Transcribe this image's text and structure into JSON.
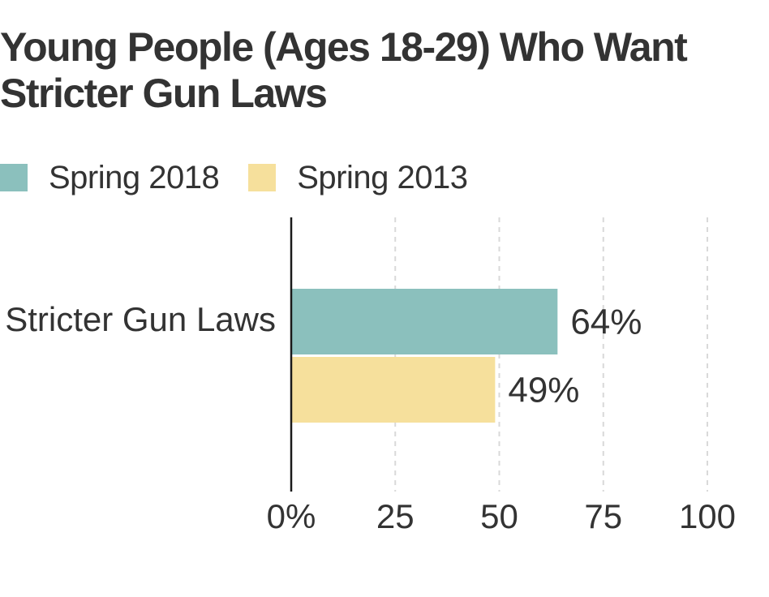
{
  "title": "Young People (Ages 18-29) Who Want Stricter Gun Laws",
  "colors": {
    "series_2018": "#8bc0bd",
    "series_2013": "#f6e09c",
    "axis": "#1a1a1a",
    "grid": "#d9d9d9",
    "text": "#333333"
  },
  "legend": [
    {
      "label": "Spring 2018",
      "color": "#8bc0bd"
    },
    {
      "label": "Spring 2013",
      "color": "#f6e09c"
    }
  ],
  "chart_data": {
    "type": "bar",
    "orientation": "horizontal",
    "title": "Young People (Ages 18-29) Who Want Stricter Gun Laws",
    "categories": [
      "Stricter Gun Laws"
    ],
    "series": [
      {
        "name": "Spring 2018",
        "values": [
          64
        ],
        "labels": [
          "64%"
        ],
        "color": "#8bc0bd"
      },
      {
        "name": "Spring 2013",
        "values": [
          49
        ],
        "labels": [
          "49%"
        ],
        "color": "#f6e09c"
      }
    ],
    "xlim": [
      0,
      100
    ],
    "xticks": [
      0,
      25,
      50,
      75,
      100
    ],
    "xtick_labels": [
      "0%",
      "25",
      "50",
      "75",
      "100"
    ],
    "grid": "vertical dashed",
    "legend_position": "top-left"
  }
}
